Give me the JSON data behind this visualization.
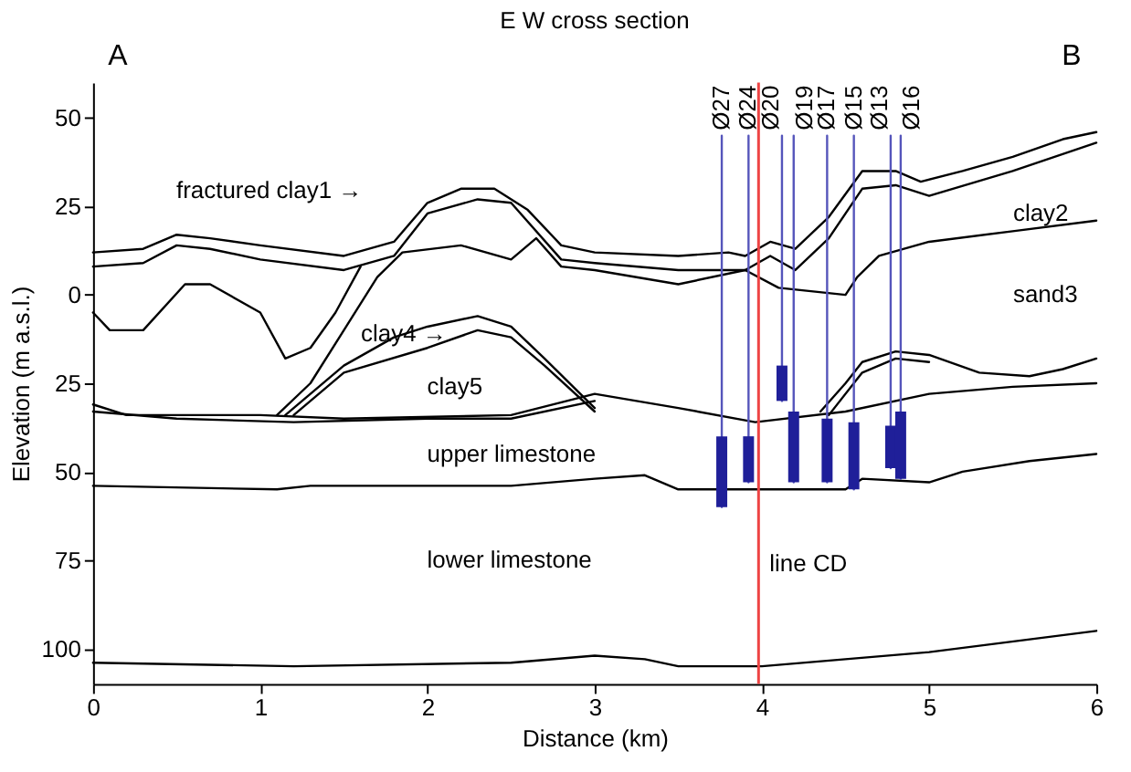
{
  "chart_data": {
    "type": "line",
    "title": "E W cross section",
    "xlabel": "Distance (km)",
    "ylabel": "Elevation (m a.s.l.)",
    "xlim": [
      0,
      6
    ],
    "xticks": [
      0,
      1,
      2,
      3,
      4,
      5,
      6
    ],
    "ylim": [
      -110,
      60
    ],
    "yticks": [
      50,
      25,
      0,
      {
        "value": -25,
        "label": "25"
      },
      {
        "value": -50,
        "label": "50"
      },
      {
        "value": -75,
        "label": "75"
      },
      {
        "value": -100,
        "label": "100"
      }
    ],
    "grid": false,
    "series": [
      {
        "color": "#000000",
        "x": [
          0,
          0.3,
          0.5,
          0.7,
          1.0,
          1.5,
          1.8,
          2.0,
          2.2,
          2.4,
          2.6,
          2.8,
          3.0,
          3.5,
          3.8,
          3.9,
          4.05,
          4.2,
          4.4,
          4.6,
          4.8,
          4.95,
          5.2,
          5.5,
          5.8,
          6.0
        ],
        "values": [
          12,
          13,
          17,
          16,
          14,
          11,
          15,
          26,
          30,
          30,
          24,
          14,
          12,
          11,
          12,
          11,
          15,
          13,
          22,
          35,
          35,
          32,
          35,
          39,
          44,
          46
        ]
      },
      {
        "color": "#000000",
        "x": [
          0,
          0.3,
          0.5,
          0.7,
          1.0,
          1.5,
          1.8,
          2.0,
          2.3,
          2.5,
          2.8,
          3.0,
          3.5,
          3.9,
          4.05,
          4.2,
          4.4,
          4.6,
          4.8,
          5.0,
          5.5,
          6.0
        ],
        "values": [
          8,
          9,
          14,
          13,
          10,
          7,
          11,
          23,
          27,
          26,
          10,
          9,
          7,
          7,
          11,
          7,
          16,
          30,
          31,
          28,
          35,
          43
        ]
      },
      {
        "color": "#000000",
        "x": [
          1.1,
          1.3,
          1.5,
          1.7,
          1.85,
          2.2,
          2.5,
          2.65,
          2.8,
          3.0,
          3.5,
          3.9,
          4.1,
          4.5,
          4.57,
          4.7,
          5.0,
          5.5,
          6.0
        ],
        "values": [
          -34,
          -25,
          -10,
          5,
          12,
          14,
          10,
          16,
          8,
          7,
          3,
          7,
          2,
          0,
          5,
          11,
          15,
          18,
          21
        ]
      },
      {
        "color": "#000000",
        "x": [
          0,
          0.1,
          0.3,
          0.55,
          0.7,
          1.0,
          1.15,
          1.3,
          1.45,
          1.6
        ],
        "values": [
          -5,
          -10,
          -10,
          3,
          3,
          -5,
          -18,
          -15,
          -5,
          8
        ]
      },
      {
        "color": "#000000",
        "x": [
          1.15,
          1.5,
          1.8,
          2.0,
          2.3,
          2.5,
          2.7,
          3.0
        ],
        "values": [
          -34,
          -20,
          -12,
          -9,
          -6,
          -9,
          -18,
          -32
        ]
      },
      {
        "color": "#000000",
        "x": [
          1.2,
          1.5,
          2.0,
          2.3,
          2.5,
          2.7,
          3.0
        ],
        "values": [
          -34,
          -22,
          -15,
          -10,
          -12,
          -20,
          -33
        ]
      },
      {
        "color": "#000000",
        "x": [
          0,
          0.2,
          1.0,
          1.5,
          2.5,
          3.0,
          3.5,
          3.96,
          4.5,
          5.0,
          5.5,
          6.0
        ],
        "values": [
          -31,
          -34,
          -34,
          -35,
          -34,
          -28,
          -32,
          -36,
          -33,
          -28,
          -26,
          -25
        ]
      },
      {
        "color": "#000000",
        "x": [
          0,
          0.5,
          1.2,
          2.0,
          2.5,
          3.0
        ],
        "values": [
          -33,
          -35,
          -36,
          -35,
          -35,
          -30
        ]
      },
      {
        "color": "#000000",
        "x": [
          4.35,
          4.5,
          4.6,
          4.8,
          5.0,
          5.3,
          5.6,
          5.8,
          6.0
        ],
        "values": [
          -33,
          -25,
          -19,
          -16,
          -17,
          -22,
          -23,
          -21,
          -18
        ]
      },
      {
        "color": "#000000",
        "x": [
          4.4,
          4.6,
          4.8,
          5.0
        ],
        "values": [
          -34,
          -22,
          -18,
          -19
        ]
      },
      {
        "color": "#000000",
        "x": [
          0,
          1.1,
          1.3,
          2.5,
          3.0,
          3.3,
          3.5,
          4.5,
          4.6,
          5.0,
          5.2,
          5.6,
          6.0
        ],
        "values": [
          -54,
          -55,
          -54,
          -54,
          -52,
          -51,
          -55,
          -55,
          -52,
          -53,
          -50,
          -47,
          -45
        ]
      },
      {
        "color": "#000000",
        "x": [
          0,
          1.2,
          2.5,
          3.0,
          3.3,
          3.5,
          4.0,
          4.5,
          5.0,
          6.0
        ],
        "values": [
          -104,
          -105,
          -104,
          -102,
          -103,
          -105,
          -105,
          -103,
          -101,
          -95
        ]
      },
      {
        "name": "Ø27",
        "color": "#5555bb",
        "x": [
          3.76,
          3.76
        ],
        "values": [
          45,
          -60
        ]
      },
      {
        "name": "Ø24",
        "color": "#5555bb",
        "x": [
          3.92,
          3.92
        ],
        "values": [
          45,
          -53
        ]
      },
      {
        "name": "Ø20",
        "color": "#5555bb",
        "x": [
          4.12,
          4.12
        ],
        "values": [
          45,
          -30
        ]
      },
      {
        "name": "Ø19",
        "color": "#5555bb",
        "x": [
          4.19,
          4.19
        ],
        "values": [
          45,
          -53
        ]
      },
      {
        "name": "Ø17",
        "color": "#5555bb",
        "x": [
          4.39,
          4.39
        ],
        "values": [
          45,
          -53
        ]
      },
      {
        "name": "Ø15",
        "color": "#5555bb",
        "x": [
          4.55,
          4.55
        ],
        "values": [
          45,
          -55
        ]
      },
      {
        "name": "Ø13",
        "color": "#5555bb",
        "x": [
          4.77,
          4.77
        ],
        "values": [
          45,
          -49
        ]
      },
      {
        "name": "Ø16",
        "color": "#5555bb",
        "x": [
          4.83,
          4.83
        ],
        "values": [
          45,
          -52
        ]
      },
      {
        "type": "bar",
        "color": "#1f1f99",
        "x": [
          3.76,
          3.92,
          4.12,
          4.19,
          4.39,
          4.55,
          4.77,
          4.83
        ],
        "base": [
          -60,
          -53,
          -30,
          -53,
          -53,
          -55,
          -49,
          -52
        ],
        "values": [
          20,
          13,
          10,
          20,
          18,
          19,
          12,
          19
        ]
      }
    ],
    "ref_lines": [
      {
        "axis": "x",
        "value": 3.98,
        "label": "line CD",
        "color": "#ee4444"
      }
    ],
    "annotations": [
      "A",
      "B",
      "fractured clay1 →",
      "clay2",
      "sand3",
      "clay4 →",
      "clay5",
      "upper limestone",
      "lower limestone"
    ]
  }
}
